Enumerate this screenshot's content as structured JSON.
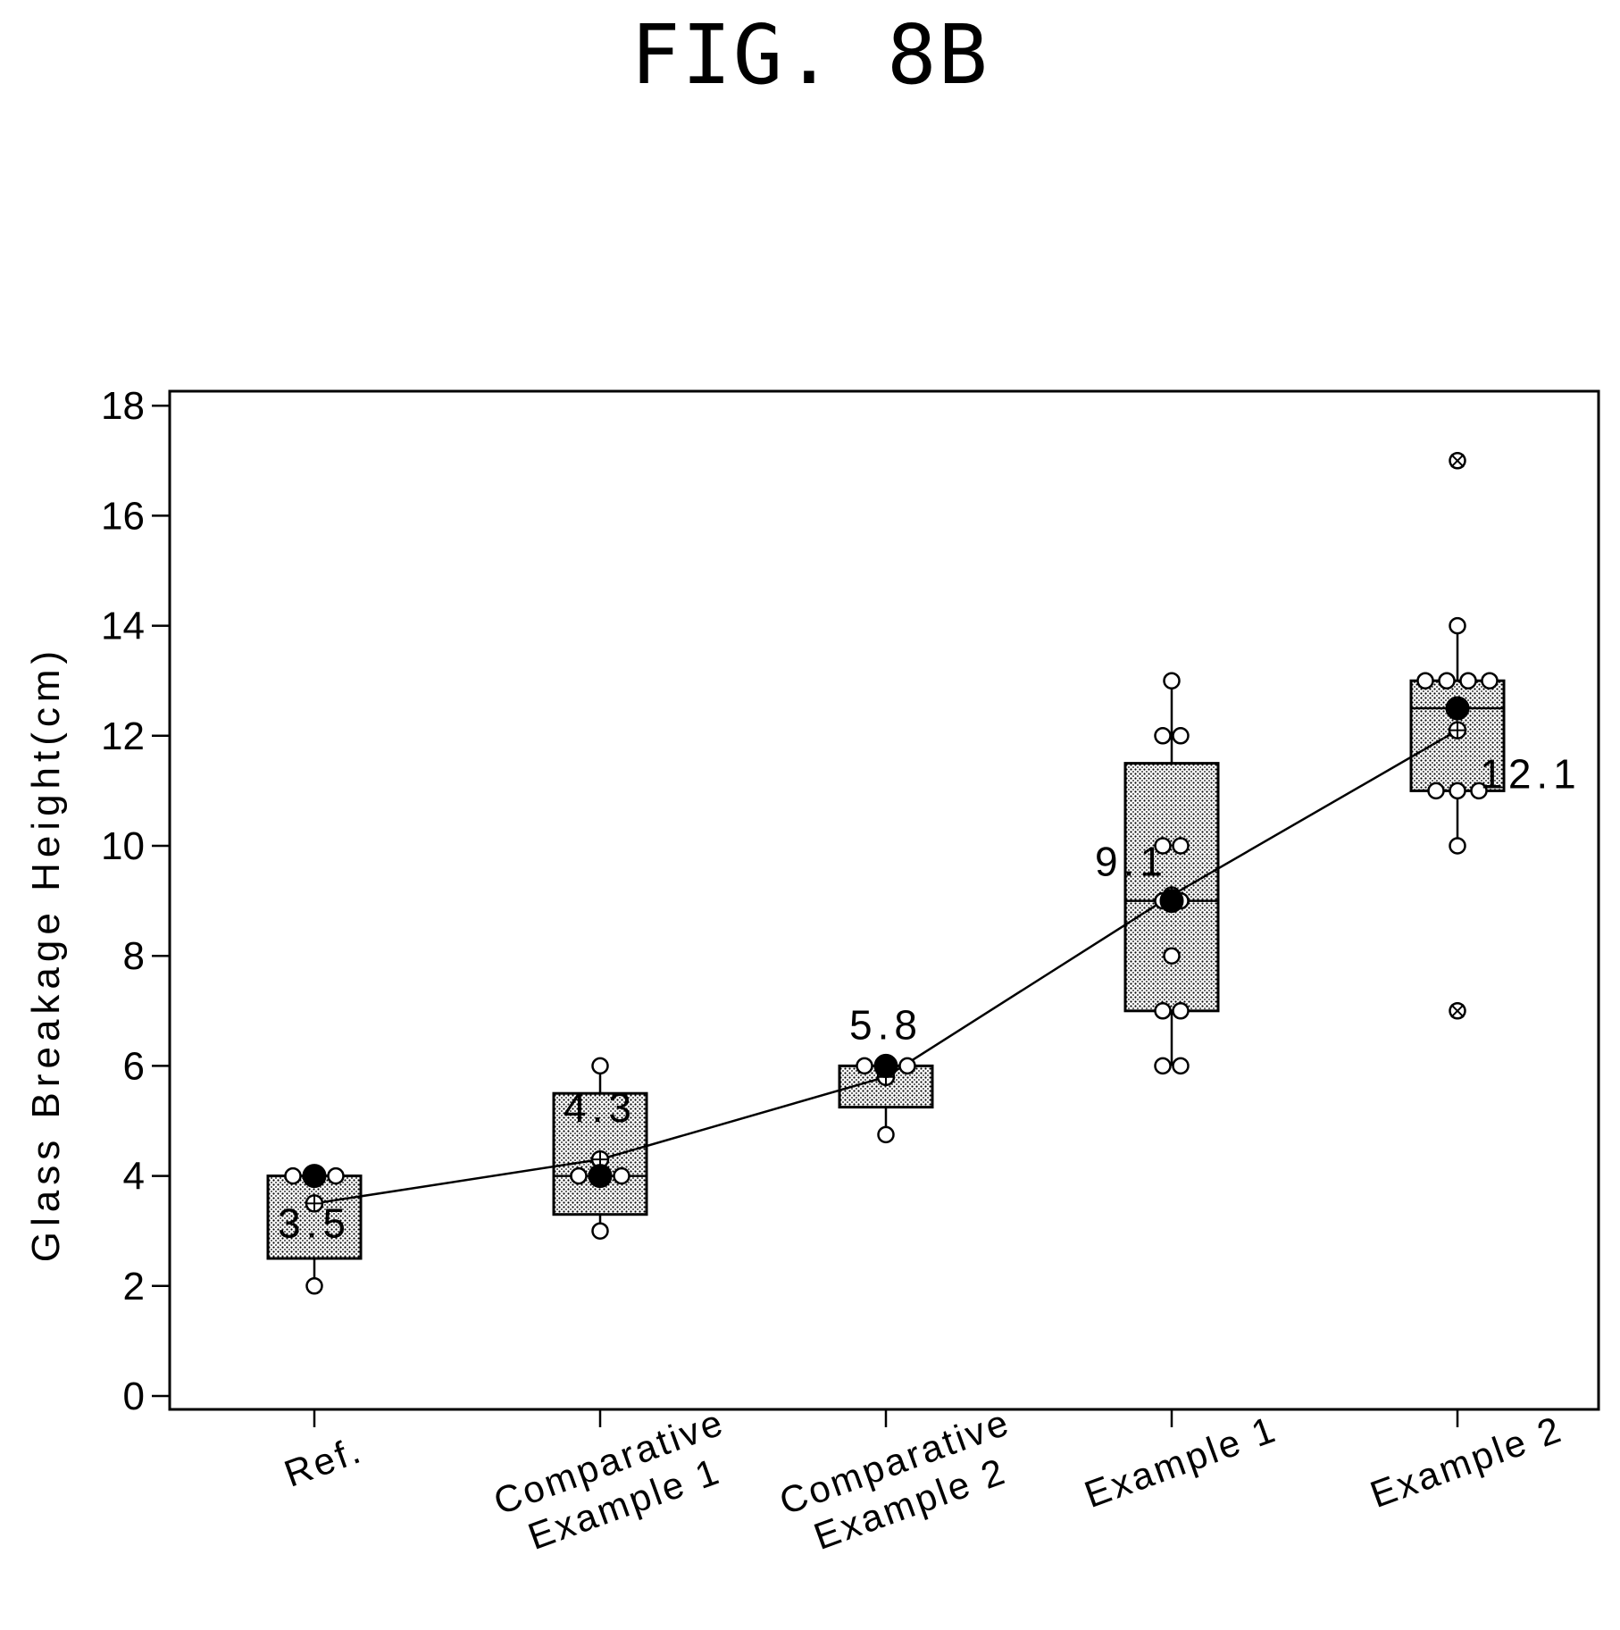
{
  "figure_title": "FIG. 8B",
  "chart_data": {
    "type": "box",
    "title": "FIG. 8B",
    "xlabel": "",
    "ylabel": "Glass Breakage Height(cm)",
    "ylim": [
      0,
      18
    ],
    "yticks": [
      0,
      2,
      4,
      6,
      8,
      10,
      12,
      14,
      16,
      18
    ],
    "grid": false,
    "categories": [
      "Ref.",
      "Comparative Example 1",
      "Comparative Example 2",
      "Example 1",
      "Example 2"
    ],
    "category_labels": [
      [
        "Ref."
      ],
      [
        "Comparative",
        "Example 1"
      ],
      [
        "Comparative",
        "Example 2"
      ],
      [
        "Example 1"
      ],
      [
        "Example 2"
      ]
    ],
    "boxes": [
      {
        "q1": 2.5,
        "median": 4.0,
        "q3": 4.0,
        "whisker_low": 2.0,
        "whisker_high": 4.0,
        "mean": 3.5,
        "mean_label": "3.5",
        "filled_point": 4.0,
        "points": [
          2,
          4,
          4,
          4
        ],
        "outliers": []
      },
      {
        "q1": 3.3,
        "median": 4.0,
        "q3": 5.5,
        "whisker_low": 3.0,
        "whisker_high": 6.0,
        "mean": 4.3,
        "mean_label": "4.3",
        "filled_point": 4.0,
        "points": [
          3,
          4,
          4,
          4,
          6
        ],
        "outliers": []
      },
      {
        "q1": 5.25,
        "median": 6.0,
        "q3": 6.0,
        "whisker_low": 4.75,
        "whisker_high": 6.0,
        "mean": 5.8,
        "mean_label": "5.8",
        "filled_point": 6.0,
        "points": [
          4.75,
          6,
          6,
          6
        ],
        "outliers": []
      },
      {
        "q1": 7.0,
        "median": 9.0,
        "q3": 11.5,
        "whisker_low": 6.0,
        "whisker_high": 13.0,
        "mean": 9.1,
        "mean_label": "9.1",
        "filled_point": 9.0,
        "points": [
          6,
          6,
          7,
          7,
          8,
          9,
          9,
          10,
          10,
          12,
          12,
          13
        ],
        "outliers": []
      },
      {
        "q1": 11.0,
        "median": 12.5,
        "q3": 13.0,
        "whisker_low": 10.0,
        "whisker_high": 14.0,
        "mean": 12.1,
        "mean_label": "12.1",
        "filled_point": 12.5,
        "points": [
          10,
          11,
          11,
          11,
          13,
          13,
          13,
          13,
          14
        ],
        "outliers": [
          7,
          17
        ]
      }
    ],
    "mean_line": [
      3.5,
      4.3,
      5.8,
      9.1,
      12.1
    ],
    "style": {
      "box_fill": "#d9d9d9",
      "stroke": "#000000"
    }
  }
}
